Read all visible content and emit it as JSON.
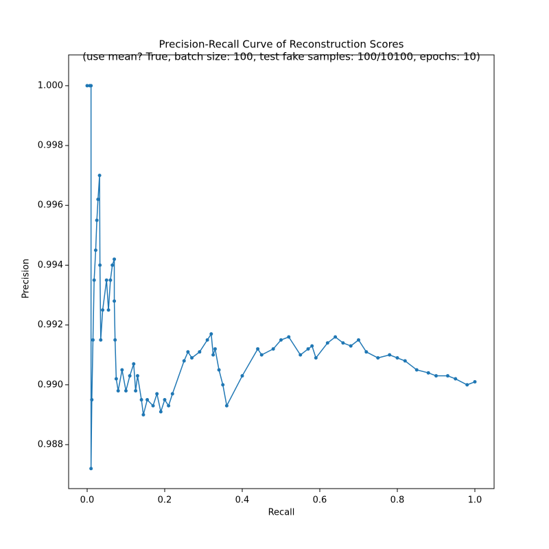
{
  "chart_data": {
    "type": "line",
    "title": "Precision-Recall Curve of Reconstruction Scores",
    "subtitle": "(use mean? True, batch size: 100, test fake samples: 100/10100, epochs: 10)",
    "xlabel": "Recall",
    "ylabel": "Precision",
    "xlim": [
      -0.0478,
      1.0496
    ],
    "ylim": [
      0.98653,
      1.00103
    ],
    "xticks": [
      {
        "value": 0,
        "label": "0.0"
      },
      {
        "value": 0.2,
        "label": "0.2"
      },
      {
        "value": 0.4,
        "label": "0.4"
      },
      {
        "value": 0.6,
        "label": "0.6"
      },
      {
        "value": 0.8,
        "label": "0.8"
      },
      {
        "value": 1,
        "label": "1.0"
      }
    ],
    "yticks": [
      {
        "value": 0.988,
        "label": "0.988"
      },
      {
        "value": 0.99,
        "label": "0.990"
      },
      {
        "value": 0.992,
        "label": "0.992"
      },
      {
        "value": 0.994,
        "label": "0.994"
      },
      {
        "value": 0.996,
        "label": "0.996"
      },
      {
        "value": 0.998,
        "label": "0.998"
      },
      {
        "value": 1,
        "label": "1.000"
      }
    ],
    "grid": false,
    "series": [
      {
        "color": "#1f77b4",
        "x": [
          0.0,
          0.007,
          0.01,
          0.01,
          0.012,
          0.015,
          0.018,
          0.022,
          0.025,
          0.028,
          0.032,
          0.033,
          0.035,
          0.04,
          0.05,
          0.055,
          0.06,
          0.065,
          0.07,
          0.07,
          0.072,
          0.075,
          0.08,
          0.09,
          0.1,
          0.11,
          0.12,
          0.125,
          0.13,
          0.14,
          0.145,
          0.155,
          0.17,
          0.18,
          0.19,
          0.2,
          0.21,
          0.22,
          0.25,
          0.26,
          0.27,
          0.29,
          0.31,
          0.32,
          0.325,
          0.33,
          0.34,
          0.35,
          0.36,
          0.4,
          0.44,
          0.45,
          0.48,
          0.5,
          0.52,
          0.55,
          0.57,
          0.58,
          0.59,
          0.62,
          0.64,
          0.66,
          0.68,
          0.7,
          0.72,
          0.75,
          0.78,
          0.8,
          0.82,
          0.85,
          0.88,
          0.9,
          0.93,
          0.95,
          0.98,
          1.0
        ],
        "values": [
          1.0,
          1.0,
          1.0,
          0.9872,
          0.9895,
          0.9915,
          0.9935,
          0.9945,
          0.9955,
          0.9962,
          0.997,
          0.994,
          0.9915,
          0.9925,
          0.9935,
          0.9925,
          0.9935,
          0.994,
          0.9942,
          0.9928,
          0.9915,
          0.9902,
          0.9898,
          0.9905,
          0.9898,
          0.9903,
          0.9907,
          0.9898,
          0.9903,
          0.9895,
          0.989,
          0.9895,
          0.9893,
          0.9897,
          0.9891,
          0.9895,
          0.9893,
          0.9897,
          0.9908,
          0.9911,
          0.9909,
          0.9911,
          0.9915,
          0.9917,
          0.991,
          0.9912,
          0.9905,
          0.99,
          0.9893,
          0.9903,
          0.9912,
          0.991,
          0.9912,
          0.9915,
          0.9916,
          0.991,
          0.9912,
          0.9913,
          0.9909,
          0.9914,
          0.9916,
          0.9914,
          0.9913,
          0.9915,
          0.9911,
          0.9909,
          0.991,
          0.9909,
          0.9908,
          0.9905,
          0.9904,
          0.9903,
          0.9903,
          0.9902,
          0.99,
          0.9901
        ]
      }
    ]
  }
}
